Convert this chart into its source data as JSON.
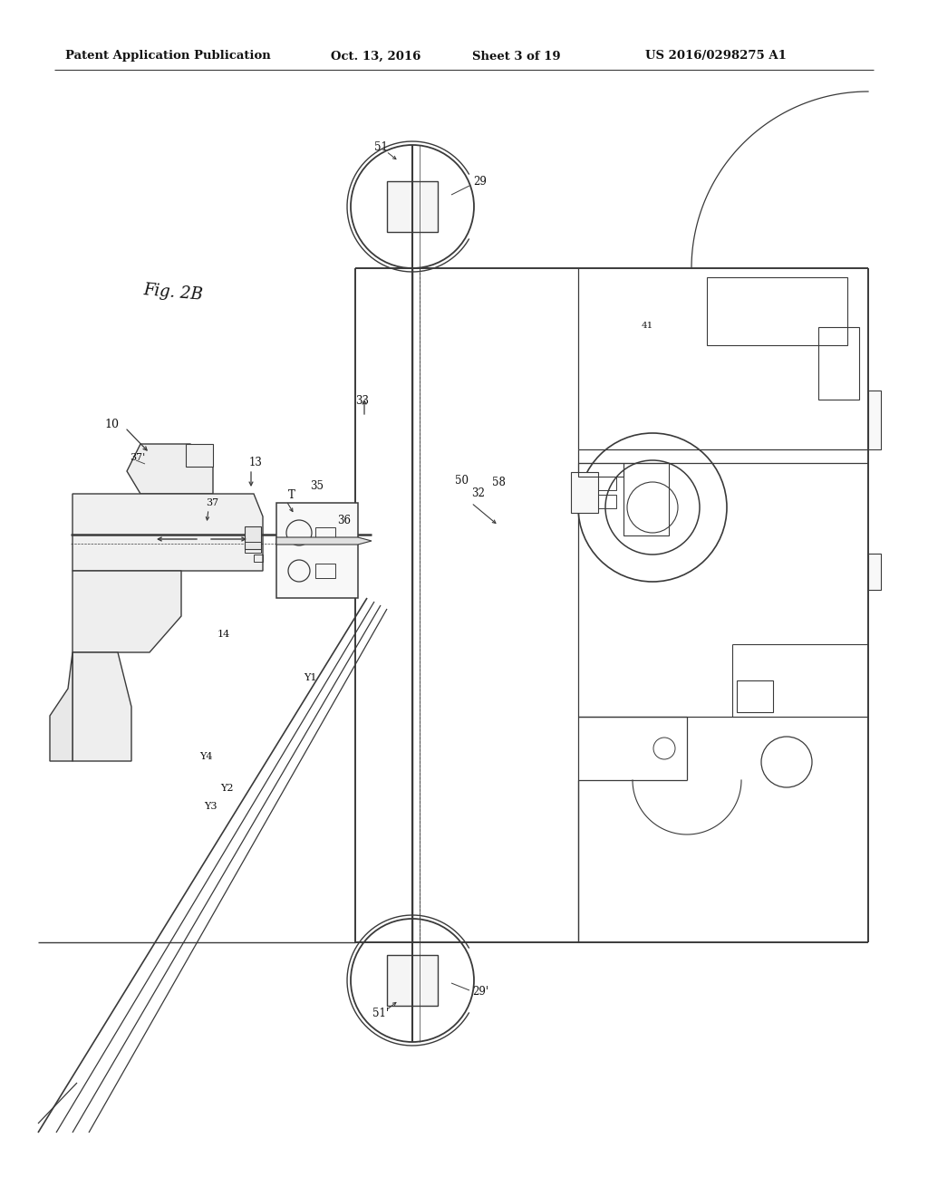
{
  "bg_color": "#ffffff",
  "lc": "#3a3a3a",
  "lc2": "#555555",
  "header_text": "Patent Application Publication",
  "header_date": "Oct. 13, 2016",
  "header_sheet": "Sheet 3 of 19",
  "header_patent": "US 2016/0298275 A1",
  "fig_label": "Fig. 2B"
}
